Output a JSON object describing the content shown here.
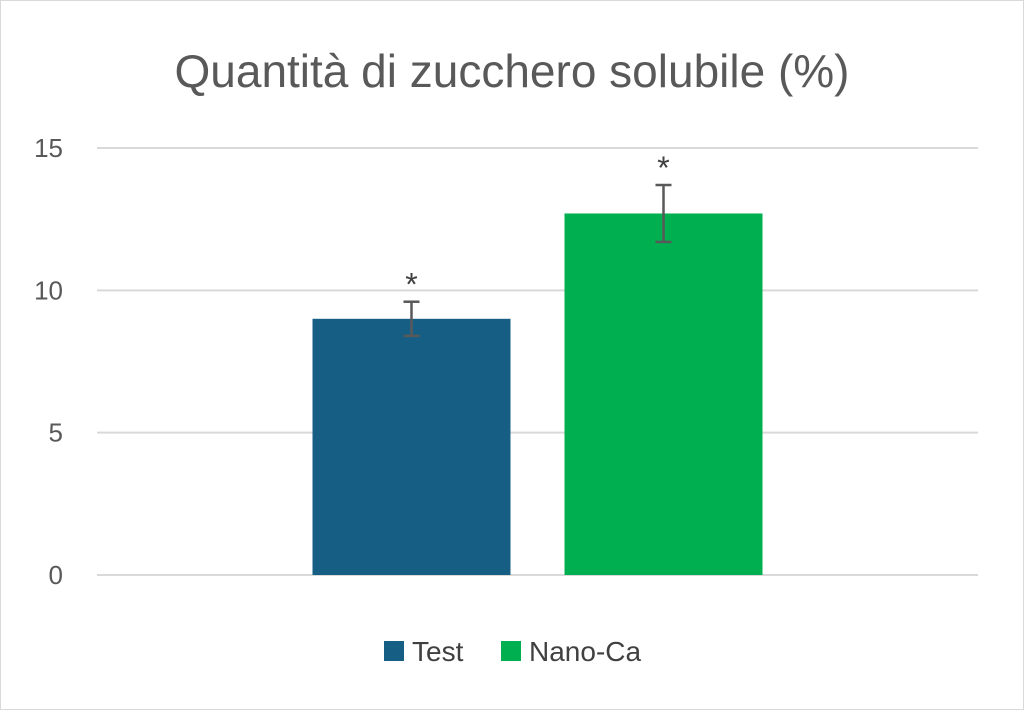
{
  "chart_data": {
    "type": "bar",
    "title": "Quantità di zucchero solubile (%)",
    "xlabel": "",
    "ylabel": "",
    "ylim": [
      0,
      15
    ],
    "yticks": [
      0,
      5,
      10,
      15
    ],
    "grid": true,
    "legend_position": "bottom",
    "series": [
      {
        "name": "Test",
        "value": 9.0,
        "error": 0.6,
        "annotation": "*",
        "color": "#175e84"
      },
      {
        "name": "Nano-Ca",
        "value": 12.7,
        "error": 1.0,
        "annotation": "*",
        "color": "#00b050"
      }
    ]
  }
}
